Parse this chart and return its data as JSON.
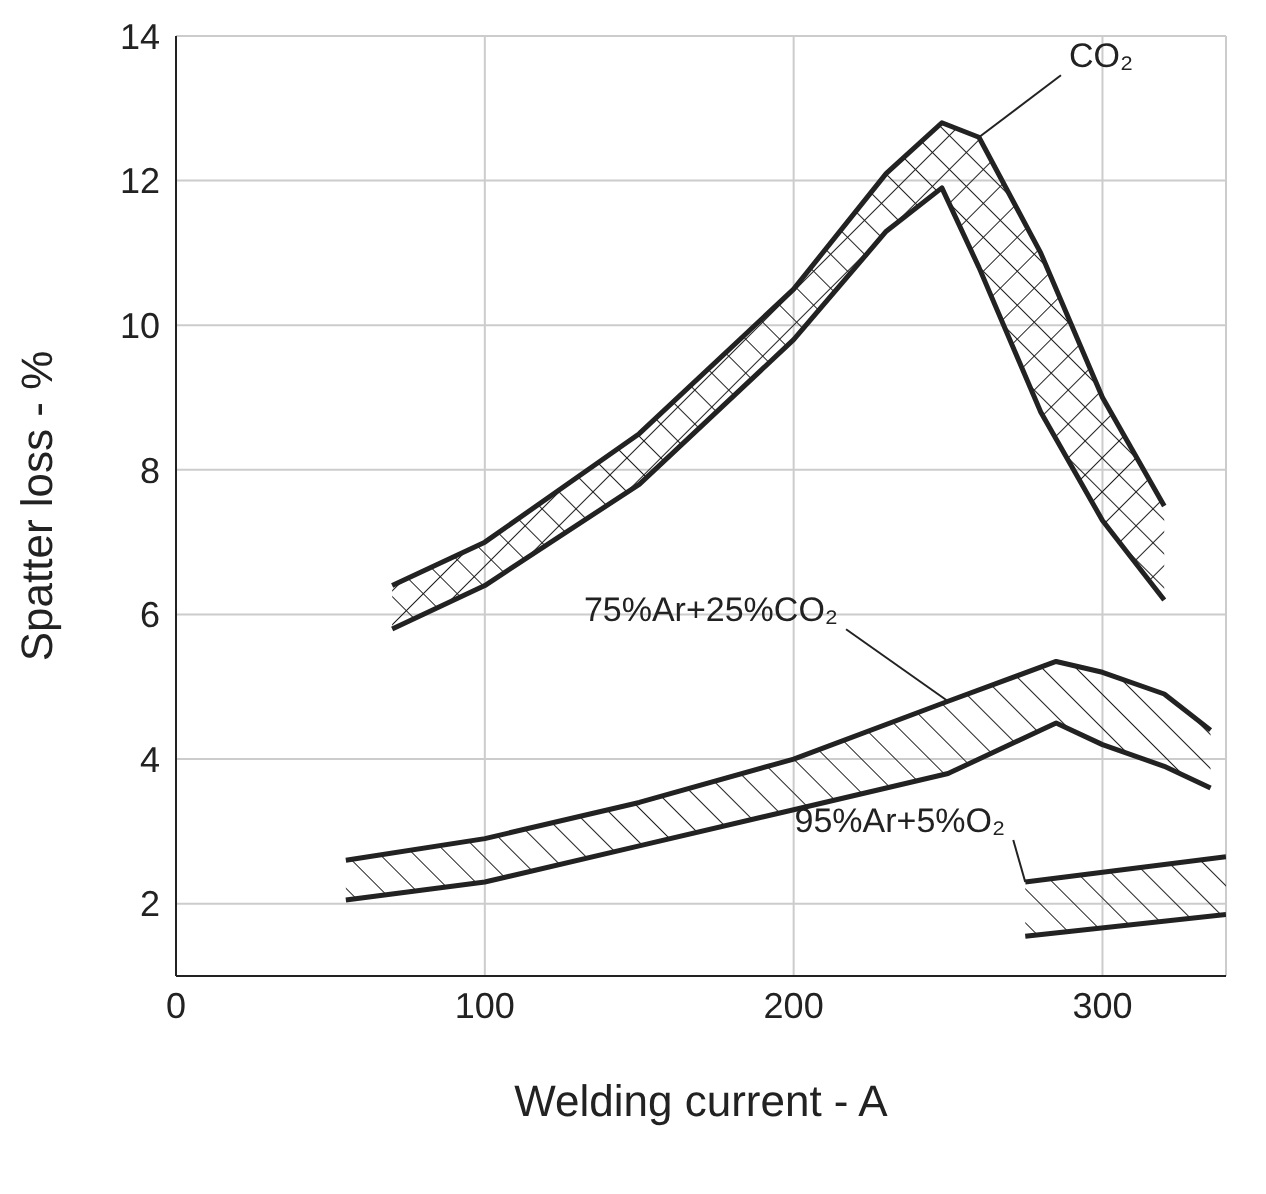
{
  "chart_data": {
    "type": "line",
    "xlabel": "Welding current - A",
    "ylabel": "Spatter loss - %",
    "xlim": [
      0,
      340
    ],
    "xticks": [
      0,
      100,
      200,
      300
    ],
    "ylim": [
      1,
      14
    ],
    "yticks": [
      2,
      4,
      6,
      8,
      10,
      12,
      14
    ],
    "grid": true,
    "series": [
      {
        "color": "#222222",
        "x": [
          70,
          100,
          150,
          200,
          230,
          248,
          260,
          280,
          300,
          320
        ],
        "values": [
          6.4,
          7.0,
          8.5,
          10.5,
          12.1,
          12.8,
          12.6,
          11.0,
          9.0,
          7.5
        ],
        "upper": [
          6.4,
          7.0,
          8.5,
          10.5,
          12.1,
          12.8,
          12.6,
          11.0,
          9.0,
          7.5
        ],
        "lower": [
          5.8,
          6.4,
          7.8,
          9.8,
          11.3,
          11.9,
          10.8,
          8.8,
          7.3,
          6.2
        ]
      },
      {
        "color": "#222222",
        "x": [
          70,
          100,
          150,
          200,
          230,
          248,
          260,
          280,
          300,
          320
        ],
        "values": [
          5.8,
          6.4,
          7.8,
          9.8,
          11.3,
          11.9,
          10.8,
          8.8,
          7.3,
          6.2
        ]
      },
      {
        "color": "#222222",
        "x": [
          55,
          100,
          150,
          200,
          250,
          285,
          300,
          320,
          335
        ],
        "values": [
          2.6,
          2.9,
          3.4,
          4.0,
          4.8,
          5.35,
          5.2,
          4.9,
          4.4
        ],
        "upper": [
          2.6,
          2.9,
          3.4,
          4.0,
          4.8,
          5.35,
          5.2,
          4.9,
          4.4
        ],
        "lower": [
          2.05,
          2.3,
          2.8,
          3.3,
          3.8,
          4.5,
          4.2,
          3.9,
          3.6
        ]
      },
      {
        "color": "#222222",
        "x": [
          55,
          100,
          150,
          200,
          250,
          285,
          300,
          320,
          335
        ],
        "values": [
          2.05,
          2.3,
          2.8,
          3.3,
          3.8,
          4.5,
          4.2,
          3.9,
          3.6
        ]
      },
      {
        "color": "#222222",
        "x": [
          275,
          340
        ],
        "values": [
          2.3,
          2.65
        ],
        "upper": [
          2.3,
          2.65
        ],
        "lower": [
          1.55,
          1.85
        ]
      },
      {
        "color": "#222222",
        "x": [
          275,
          340
        ],
        "values": [
          1.55,
          1.85
        ]
      }
    ],
    "annotations": [
      {
        "text": "CO₂",
        "x": 260,
        "y": 12.6
      },
      {
        "text": "75%Ar+25%CO₂",
        "x": 250,
        "y": 4.8
      },
      {
        "text": "95%Ar+5%O₂",
        "x": 275,
        "y": 2.3
      }
    ]
  }
}
